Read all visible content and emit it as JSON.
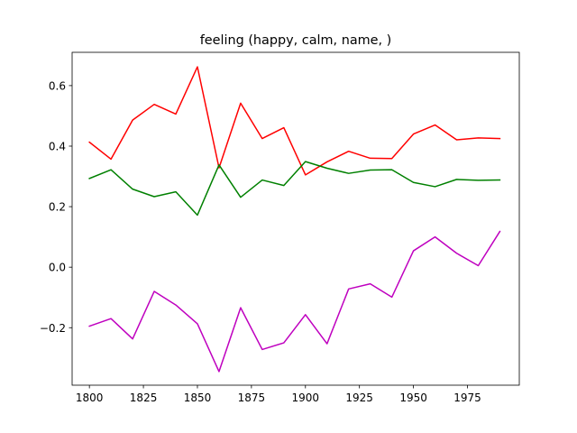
{
  "chart_data": {
    "type": "line",
    "title": "feeling (happy, calm, name, )",
    "xlabel": "",
    "ylabel": "",
    "xlim": [
      1792,
      1999
    ],
    "ylim": [
      -0.39,
      0.71
    ],
    "xticks": [
      1800,
      1825,
      1850,
      1875,
      1900,
      1925,
      1950,
      1975
    ],
    "xtick_labels": [
      "1800",
      "1825",
      "1850",
      "1875",
      "1900",
      "1925",
      "1950",
      "1975"
    ],
    "yticks": [
      -0.2,
      0.0,
      0.2,
      0.4,
      0.6
    ],
    "ytick_labels": [
      "−0.2",
      "0.0",
      "0.2",
      "0.4",
      "0.6"
    ],
    "grid": false,
    "legend": false,
    "x": [
      1800,
      1810,
      1820,
      1830,
      1840,
      1850,
      1860,
      1870,
      1880,
      1890,
      1900,
      1910,
      1920,
      1930,
      1940,
      1950,
      1960,
      1970,
      1980,
      1990
    ],
    "series": [
      {
        "color": "#ff0000",
        "values": [
          0.413,
          0.357,
          0.486,
          0.538,
          0.506,
          0.662,
          0.328,
          0.542,
          0.425,
          0.461,
          0.305,
          0.348,
          0.383,
          0.36,
          0.359,
          0.44,
          0.47,
          0.421,
          0.427,
          0.425
        ]
      },
      {
        "color": "#008000",
        "values": [
          0.293,
          0.322,
          0.258,
          0.233,
          0.249,
          0.172,
          0.338,
          0.231,
          0.288,
          0.27,
          0.349,
          0.327,
          0.31,
          0.321,
          0.322,
          0.28,
          0.266,
          0.29,
          0.287,
          0.288
        ]
      },
      {
        "color": "#bf00bf",
        "values": [
          -0.195,
          -0.17,
          -0.237,
          -0.08,
          -0.125,
          -0.187,
          -0.345,
          -0.134,
          -0.272,
          -0.25,
          -0.157,
          -0.253,
          -0.072,
          -0.055,
          -0.099,
          0.054,
          0.1,
          0.046,
          0.005,
          0.118
        ]
      }
    ]
  }
}
